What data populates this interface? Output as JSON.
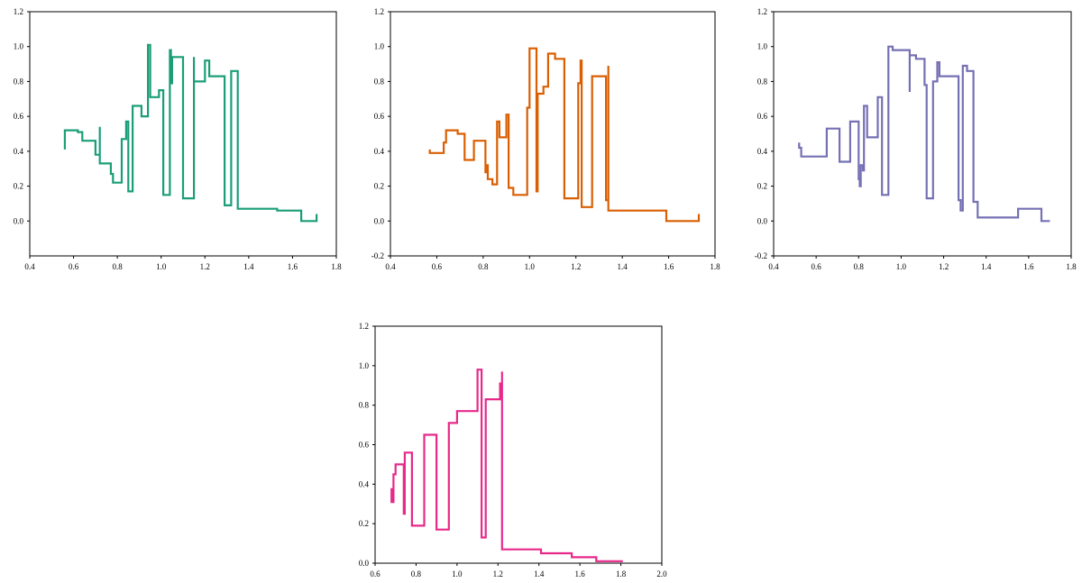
{
  "chart_data": [
    {
      "type": "line",
      "step": true,
      "title": "",
      "xlabel": "",
      "ylabel": "",
      "color": "#1b9e77",
      "xlim": [
        0.4,
        1.8
      ],
      "ylim": [
        -0.2,
        1.2
      ],
      "xticks": [
        0.4,
        0.6,
        0.8,
        1.0,
        1.2,
        1.4,
        1.6,
        1.8
      ],
      "yticks": [
        0.0,
        0.2,
        0.4,
        0.6,
        0.8,
        1.0,
        1.2
      ],
      "xticklabels": [
        "0.4",
        "0.6",
        "0.8",
        "1.0",
        "1.2",
        "1.4",
        "1.6",
        "1.8"
      ],
      "yticklabels": [
        "0.0",
        "0.2",
        "0.4",
        "0.6",
        "0.8",
        "1.0",
        "1.2"
      ],
      "points": [
        [
          0.56,
          0.41
        ],
        [
          0.56,
          0.52
        ],
        [
          0.62,
          0.52
        ],
        [
          0.62,
          0.51
        ],
        [
          0.64,
          0.51
        ],
        [
          0.64,
          0.46
        ],
        [
          0.7,
          0.46
        ],
        [
          0.7,
          0.38
        ],
        [
          0.72,
          0.38
        ],
        [
          0.72,
          0.54
        ],
        [
          0.72,
          0.33
        ],
        [
          0.77,
          0.33
        ],
        [
          0.77,
          0.27
        ],
        [
          0.78,
          0.27
        ],
        [
          0.78,
          0.22
        ],
        [
          0.82,
          0.22
        ],
        [
          0.82,
          0.47
        ],
        [
          0.84,
          0.47
        ],
        [
          0.84,
          0.57
        ],
        [
          0.85,
          0.57
        ],
        [
          0.85,
          0.17
        ],
        [
          0.87,
          0.17
        ],
        [
          0.87,
          0.66
        ],
        [
          0.91,
          0.66
        ],
        [
          0.91,
          0.6
        ],
        [
          0.94,
          0.6
        ],
        [
          0.94,
          1.01
        ],
        [
          0.95,
          1.01
        ],
        [
          0.95,
          0.71
        ],
        [
          0.99,
          0.71
        ],
        [
          0.99,
          0.75
        ],
        [
          1.01,
          0.75
        ],
        [
          1.01,
          0.15
        ],
        [
          1.04,
          0.15
        ],
        [
          1.04,
          0.98
        ],
        [
          1.045,
          0.98
        ],
        [
          1.045,
          0.79
        ],
        [
          1.05,
          0.79
        ],
        [
          1.05,
          0.94
        ],
        [
          1.1,
          0.94
        ],
        [
          1.1,
          0.13
        ],
        [
          1.15,
          0.13
        ],
        [
          1.15,
          0.94
        ],
        [
          1.15,
          0.8
        ],
        [
          1.2,
          0.8
        ],
        [
          1.2,
          0.92
        ],
        [
          1.22,
          0.92
        ],
        [
          1.22,
          0.83
        ],
        [
          1.29,
          0.83
        ],
        [
          1.29,
          0.09
        ],
        [
          1.32,
          0.09
        ],
        [
          1.32,
          0.86
        ],
        [
          1.35,
          0.86
        ],
        [
          1.35,
          0.07
        ],
        [
          1.53,
          0.07
        ],
        [
          1.53,
          0.06
        ],
        [
          1.64,
          0.06
        ],
        [
          1.64,
          0.0
        ],
        [
          1.71,
          0.0
        ],
        [
          1.71,
          0.04
        ]
      ]
    },
    {
      "type": "line",
      "step": true,
      "title": "",
      "xlabel": "",
      "ylabel": "",
      "color": "#d95f02",
      "xlim": [
        0.4,
        1.8
      ],
      "ylim": [
        -0.2,
        1.2
      ],
      "xticks": [
        0.4,
        0.6,
        0.8,
        1.0,
        1.2,
        1.4,
        1.6,
        1.8
      ],
      "yticks": [
        -0.2,
        0.0,
        0.2,
        0.4,
        0.6,
        0.8,
        1.0,
        1.2
      ],
      "xticklabels": [
        "0.4",
        "0.6",
        "0.8",
        "1.0",
        "1.2",
        "1.4",
        "1.6",
        "1.8"
      ],
      "yticklabels": [
        "-0.2",
        "0.0",
        "0.2",
        "0.4",
        "0.6",
        "0.8",
        "1.0",
        "1.2"
      ],
      "points": [
        [
          0.57,
          0.41
        ],
        [
          0.57,
          0.39
        ],
        [
          0.63,
          0.39
        ],
        [
          0.63,
          0.45
        ],
        [
          0.64,
          0.45
        ],
        [
          0.64,
          0.52
        ],
        [
          0.69,
          0.52
        ],
        [
          0.69,
          0.5
        ],
        [
          0.72,
          0.5
        ],
        [
          0.72,
          0.35
        ],
        [
          0.76,
          0.35
        ],
        [
          0.76,
          0.46
        ],
        [
          0.81,
          0.46
        ],
        [
          0.81,
          0.28
        ],
        [
          0.815,
          0.28
        ],
        [
          0.815,
          0.32
        ],
        [
          0.82,
          0.32
        ],
        [
          0.82,
          0.24
        ],
        [
          0.84,
          0.24
        ],
        [
          0.84,
          0.21
        ],
        [
          0.86,
          0.21
        ],
        [
          0.86,
          0.57
        ],
        [
          0.87,
          0.57
        ],
        [
          0.87,
          0.48
        ],
        [
          0.9,
          0.48
        ],
        [
          0.9,
          0.61
        ],
        [
          0.91,
          0.61
        ],
        [
          0.91,
          0.19
        ],
        [
          0.93,
          0.19
        ],
        [
          0.93,
          0.15
        ],
        [
          0.99,
          0.15
        ],
        [
          0.99,
          0.65
        ],
        [
          1.0,
          0.65
        ],
        [
          1.0,
          0.99
        ],
        [
          1.03,
          0.99
        ],
        [
          1.03,
          0.17
        ],
        [
          1.035,
          0.17
        ],
        [
          1.035,
          0.73
        ],
        [
          1.06,
          0.73
        ],
        [
          1.06,
          0.77
        ],
        [
          1.08,
          0.77
        ],
        [
          1.08,
          0.96
        ],
        [
          1.11,
          0.96
        ],
        [
          1.11,
          0.93
        ],
        [
          1.15,
          0.93
        ],
        [
          1.15,
          0.13
        ],
        [
          1.21,
          0.13
        ],
        [
          1.21,
          0.79
        ],
        [
          1.22,
          0.79
        ],
        [
          1.22,
          0.92
        ],
        [
          1.225,
          0.92
        ],
        [
          1.225,
          0.08
        ],
        [
          1.27,
          0.08
        ],
        [
          1.27,
          0.83
        ],
        [
          1.33,
          0.83
        ],
        [
          1.33,
          0.12
        ],
        [
          1.34,
          0.12
        ],
        [
          1.34,
          0.89
        ],
        [
          1.34,
          0.06
        ],
        [
          1.59,
          0.06
        ],
        [
          1.59,
          0.0
        ],
        [
          1.73,
          0.0
        ],
        [
          1.73,
          0.04
        ]
      ]
    },
    {
      "type": "line",
      "step": true,
      "title": "",
      "xlabel": "",
      "ylabel": "",
      "color": "#7570b3",
      "xlim": [
        0.4,
        1.8
      ],
      "ylim": [
        -0.2,
        1.2
      ],
      "xticks": [
        0.4,
        0.6,
        0.8,
        1.0,
        1.2,
        1.4,
        1.6,
        1.8
      ],
      "yticks": [
        -0.2,
        0.0,
        0.2,
        0.4,
        0.6,
        0.8,
        1.0,
        1.2
      ],
      "xticklabels": [
        "0.4",
        "0.6",
        "0.8",
        "1.0",
        "1.2",
        "1.4",
        "1.6",
        "1.8"
      ],
      "yticklabels": [
        "-0.2",
        "0.0",
        "0.2",
        "0.4",
        "0.6",
        "0.8",
        "1.0",
        "1.2"
      ],
      "points": [
        [
          0.52,
          0.45
        ],
        [
          0.52,
          0.42
        ],
        [
          0.53,
          0.42
        ],
        [
          0.53,
          0.37
        ],
        [
          0.65,
          0.37
        ],
        [
          0.65,
          0.53
        ],
        [
          0.71,
          0.53
        ],
        [
          0.71,
          0.34
        ],
        [
          0.76,
          0.34
        ],
        [
          0.76,
          0.57
        ],
        [
          0.8,
          0.57
        ],
        [
          0.8,
          0.24
        ],
        [
          0.805,
          0.24
        ],
        [
          0.805,
          0.2
        ],
        [
          0.81,
          0.2
        ],
        [
          0.81,
          0.32
        ],
        [
          0.82,
          0.32
        ],
        [
          0.82,
          0.29
        ],
        [
          0.825,
          0.29
        ],
        [
          0.825,
          0.66
        ],
        [
          0.84,
          0.66
        ],
        [
          0.84,
          0.48
        ],
        [
          0.89,
          0.48
        ],
        [
          0.89,
          0.71
        ],
        [
          0.91,
          0.71
        ],
        [
          0.91,
          0.15
        ],
        [
          0.94,
          0.15
        ],
        [
          0.94,
          1.0
        ],
        [
          0.96,
          1.0
        ],
        [
          0.96,
          0.98
        ],
        [
          1.04,
          0.98
        ],
        [
          1.04,
          0.74
        ],
        [
          1.04,
          0.95
        ],
        [
          1.07,
          0.95
        ],
        [
          1.07,
          0.93
        ],
        [
          1.11,
          0.93
        ],
        [
          1.11,
          0.78
        ],
        [
          1.12,
          0.78
        ],
        [
          1.12,
          0.13
        ],
        [
          1.15,
          0.13
        ],
        [
          1.15,
          0.8
        ],
        [
          1.17,
          0.8
        ],
        [
          1.17,
          0.91
        ],
        [
          1.18,
          0.91
        ],
        [
          1.18,
          0.83
        ],
        [
          1.27,
          0.83
        ],
        [
          1.27,
          0.12
        ],
        [
          1.28,
          0.12
        ],
        [
          1.28,
          0.06
        ],
        [
          1.29,
          0.06
        ],
        [
          1.29,
          0.89
        ],
        [
          1.31,
          0.89
        ],
        [
          1.31,
          0.86
        ],
        [
          1.34,
          0.86
        ],
        [
          1.34,
          0.11
        ],
        [
          1.36,
          0.11
        ],
        [
          1.36,
          0.02
        ],
        [
          1.55,
          0.02
        ],
        [
          1.55,
          0.07
        ],
        [
          1.66,
          0.07
        ],
        [
          1.66,
          0.0
        ],
        [
          1.7,
          0.0
        ]
      ]
    },
    {
      "type": "line",
      "step": true,
      "title": "",
      "xlabel": "",
      "ylabel": "",
      "color": "#e7298a",
      "xlim": [
        0.6,
        2.0
      ],
      "ylim": [
        0.0,
        1.2
      ],
      "xticks": [
        0.6,
        0.8,
        1.0,
        1.2,
        1.4,
        1.6,
        1.8,
        2.0
      ],
      "yticks": [
        0.0,
        0.2,
        0.4,
        0.6,
        0.8,
        1.0,
        1.2
      ],
      "xticklabels": [
        "0.6",
        "0.8",
        "1.0",
        "1.2",
        "1.4",
        "1.6",
        "1.8",
        "2.0"
      ],
      "yticklabels": [
        "0.0",
        "0.2",
        "0.4",
        "0.6",
        "0.8",
        "1.0",
        "1.2"
      ],
      "points": [
        [
          0.68,
          0.38
        ],
        [
          0.68,
          0.31
        ],
        [
          0.69,
          0.31
        ],
        [
          0.69,
          0.45
        ],
        [
          0.7,
          0.45
        ],
        [
          0.7,
          0.5
        ],
        [
          0.74,
          0.5
        ],
        [
          0.74,
          0.25
        ],
        [
          0.745,
          0.25
        ],
        [
          0.745,
          0.56
        ],
        [
          0.78,
          0.56
        ],
        [
          0.78,
          0.19
        ],
        [
          0.84,
          0.19
        ],
        [
          0.84,
          0.65
        ],
        [
          0.9,
          0.65
        ],
        [
          0.9,
          0.17
        ],
        [
          0.96,
          0.17
        ],
        [
          0.96,
          0.71
        ],
        [
          1.0,
          0.71
        ],
        [
          1.0,
          0.77
        ],
        [
          1.1,
          0.77
        ],
        [
          1.1,
          0.98
        ],
        [
          1.12,
          0.98
        ],
        [
          1.12,
          0.13
        ],
        [
          1.14,
          0.13
        ],
        [
          1.14,
          0.83
        ],
        [
          1.21,
          0.83
        ],
        [
          1.21,
          0.91
        ],
        [
          1.22,
          0.91
        ],
        [
          1.22,
          0.97
        ],
        [
          1.22,
          0.07
        ],
        [
          1.41,
          0.07
        ],
        [
          1.41,
          0.05
        ],
        [
          1.56,
          0.05
        ],
        [
          1.56,
          0.03
        ],
        [
          1.68,
          0.03
        ],
        [
          1.68,
          0.01
        ],
        [
          1.81,
          0.01
        ]
      ]
    }
  ]
}
